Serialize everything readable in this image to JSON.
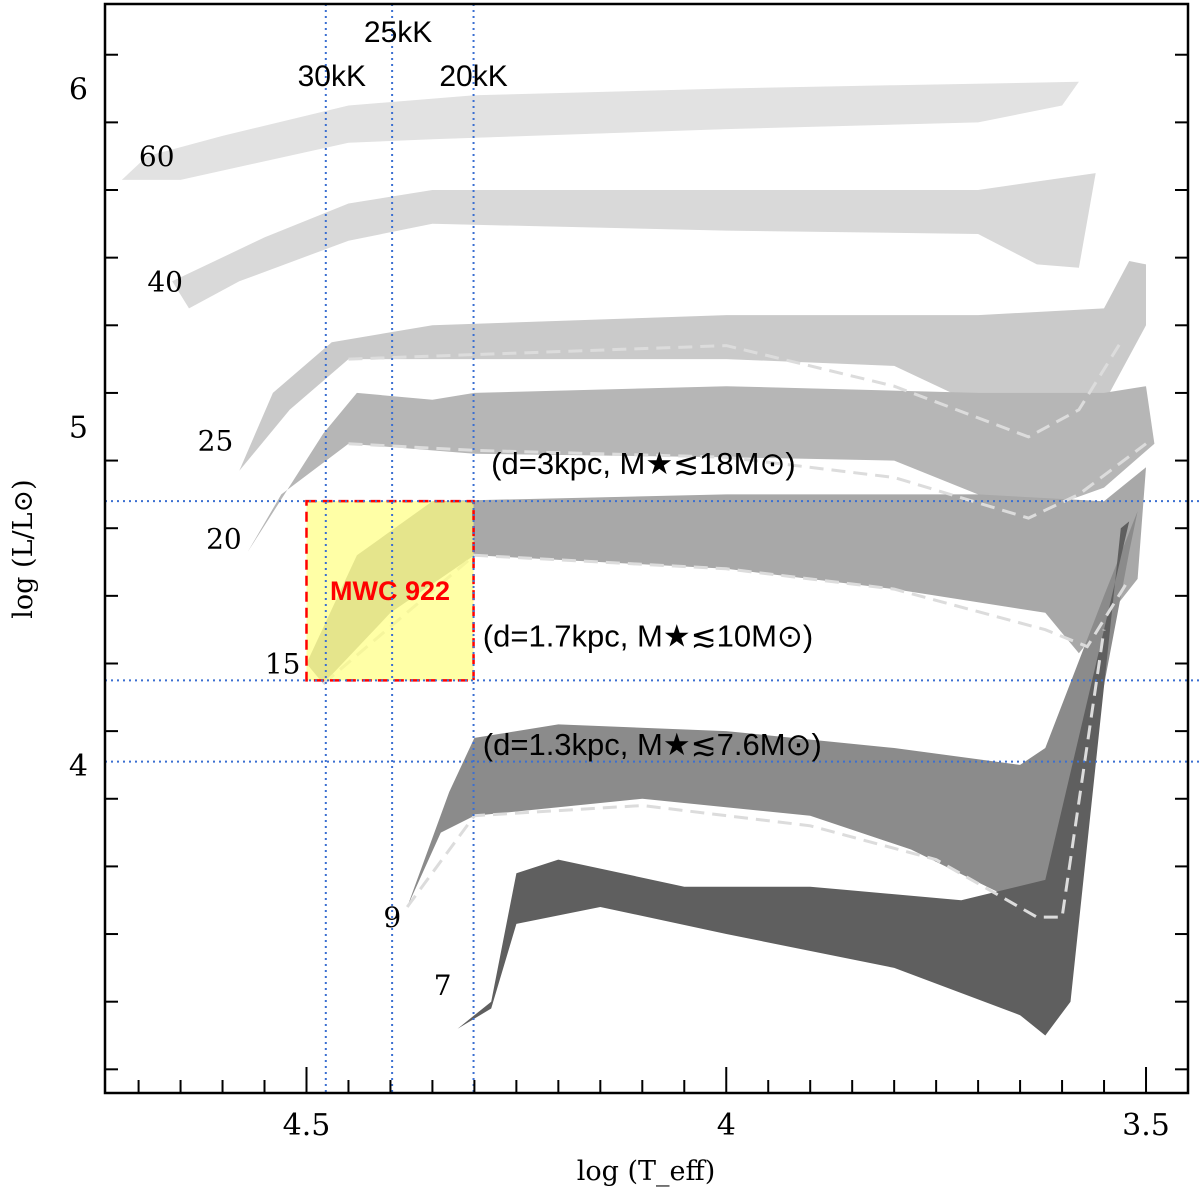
{
  "chart_data": {
    "type": "line",
    "title": "",
    "xlabel": "log (T_eff)",
    "ylabel": "log (L/L⊙)",
    "xlim": [
      4.74,
      3.45
    ],
    "ylim": [
      3.03,
      6.25
    ],
    "x_inverted": true,
    "x_ticks": [
      4.5,
      4.0,
      3.5
    ],
    "x_tick_labels": [
      "4.5",
      "4",
      "3.5"
    ],
    "y_ticks": [
      4,
      5,
      6
    ],
    "y_tick_labels": [
      "4",
      "5",
      "6"
    ],
    "grid": false,
    "legend": "none",
    "colors": {
      "track_60": "#e2e2e2",
      "track_40": "#d9d9d9",
      "track_25": "#cacaca",
      "track_20": "#b6b6b6",
      "track_15": "#a8a8a8",
      "track_9": "#8b8b8b",
      "track_7": "#5f5f5f",
      "guide_lines": "#3b6fd1",
      "box_fill": "#ffff80",
      "box_edge": "#ff0000",
      "dashed_tracks": "#dcdcdc"
    },
    "series": [
      {
        "name": "60",
        "upper": [
          [
            4.69,
            5.8
          ],
          [
            4.6,
            5.86
          ],
          [
            4.45,
            5.95
          ],
          [
            4.3,
            5.98
          ],
          [
            4.0,
            6.0
          ],
          [
            3.8,
            6.01
          ],
          [
            3.58,
            6.02
          ]
        ],
        "lower": [
          [
            4.72,
            5.73
          ],
          [
            4.65,
            5.73
          ],
          [
            4.45,
            5.84
          ],
          [
            4.35,
            5.85
          ],
          [
            4.0,
            5.88
          ],
          [
            3.7,
            5.9
          ],
          [
            3.6,
            5.95
          ]
        ]
      },
      {
        "name": "40",
        "upper": [
          [
            4.66,
            5.43
          ],
          [
            4.55,
            5.56
          ],
          [
            4.45,
            5.66
          ],
          [
            4.35,
            5.7
          ],
          [
            4.0,
            5.7
          ],
          [
            3.7,
            5.7
          ],
          [
            3.56,
            5.75
          ]
        ],
        "lower": [
          [
            4.64,
            5.35
          ],
          [
            4.58,
            5.43
          ],
          [
            4.45,
            5.55
          ],
          [
            4.35,
            5.6
          ],
          [
            4.0,
            5.58
          ],
          [
            3.7,
            5.57
          ],
          [
            3.63,
            5.48
          ],
          [
            3.58,
            5.47
          ]
        ]
      },
      {
        "name": "25",
        "upper": [
          [
            4.54,
            5.1
          ],
          [
            4.47,
            5.25
          ],
          [
            4.35,
            5.3
          ],
          [
            4.0,
            5.33
          ],
          [
            3.7,
            5.33
          ],
          [
            3.55,
            5.35
          ],
          [
            3.52,
            5.49
          ],
          [
            3.5,
            5.48
          ]
        ],
        "lower": [
          [
            4.58,
            4.87
          ],
          [
            4.52,
            5.05
          ],
          [
            4.45,
            5.2
          ],
          [
            4.3,
            5.2
          ],
          [
            4.0,
            5.2
          ],
          [
            3.8,
            5.18
          ],
          [
            3.62,
            4.97
          ],
          [
            3.55,
            5.07
          ],
          [
            3.5,
            5.3
          ]
        ],
        "dashed": [
          [
            4.45,
            5.2
          ],
          [
            4.0,
            5.24
          ],
          [
            3.8,
            5.12
          ],
          [
            3.64,
            4.97
          ],
          [
            3.58,
            5.05
          ],
          [
            3.53,
            5.25
          ]
        ]
      },
      {
        "name": "20",
        "upper": [
          [
            4.48,
            4.98
          ],
          [
            4.44,
            5.1
          ],
          [
            4.35,
            5.08
          ],
          [
            4.3,
            5.1
          ],
          [
            4.0,
            5.12
          ],
          [
            3.7,
            5.1
          ],
          [
            3.55,
            5.1
          ],
          [
            3.5,
            5.12
          ]
        ],
        "lower": [
          [
            4.57,
            4.63
          ],
          [
            4.53,
            4.8
          ],
          [
            4.45,
            4.95
          ],
          [
            4.3,
            4.92
          ],
          [
            4.0,
            4.91
          ],
          [
            3.8,
            4.9
          ],
          [
            3.64,
            4.74
          ],
          [
            3.55,
            4.82
          ],
          [
            3.49,
            4.95
          ]
        ],
        "dashed": [
          [
            4.45,
            4.95
          ],
          [
            4.3,
            4.93
          ],
          [
            4.0,
            4.91
          ],
          [
            3.8,
            4.85
          ],
          [
            3.64,
            4.73
          ],
          [
            3.58,
            4.8
          ],
          [
            3.5,
            4.95
          ]
        ]
      },
      {
        "name": "15",
        "upper": [
          [
            4.5,
            4.3
          ],
          [
            4.44,
            4.62
          ],
          [
            4.35,
            4.78
          ],
          [
            4.0,
            4.8
          ],
          [
            3.7,
            4.8
          ],
          [
            3.55,
            4.78
          ],
          [
            3.5,
            4.88
          ]
        ],
        "lower": [
          [
            4.48,
            4.24
          ],
          [
            4.4,
            4.45
          ],
          [
            4.3,
            4.62
          ],
          [
            4.0,
            4.58
          ],
          [
            3.8,
            4.52
          ],
          [
            3.62,
            4.45
          ],
          [
            3.58,
            4.33
          ],
          [
            3.51,
            4.55
          ]
        ],
        "dashed": [
          [
            4.48,
            4.24
          ],
          [
            4.3,
            4.62
          ],
          [
            4.0,
            4.58
          ],
          [
            3.8,
            4.52
          ],
          [
            3.62,
            4.4
          ],
          [
            3.57,
            4.35
          ],
          [
            3.52,
            4.55
          ]
        ]
      },
      {
        "name": "9",
        "upper": [
          [
            4.33,
            3.92
          ],
          [
            4.3,
            4.08
          ],
          [
            4.2,
            4.12
          ],
          [
            4.0,
            4.1
          ],
          [
            3.8,
            4.05
          ],
          [
            3.65,
            4.0
          ],
          [
            3.62,
            4.05
          ],
          [
            3.55,
            4.5
          ],
          [
            3.51,
            4.75
          ]
        ],
        "lower": [
          [
            4.38,
            3.58
          ],
          [
            4.34,
            3.8
          ],
          [
            4.3,
            3.85
          ],
          [
            4.1,
            3.9
          ],
          [
            3.9,
            3.85
          ],
          [
            3.78,
            3.75
          ],
          [
            3.64,
            3.58
          ],
          [
            3.6,
            3.58
          ],
          [
            3.52,
            4.63
          ]
        ],
        "dashed": [
          [
            4.38,
            3.58
          ],
          [
            4.3,
            3.85
          ],
          [
            4.1,
            3.88
          ],
          [
            3.9,
            3.82
          ],
          [
            3.75,
            3.72
          ],
          [
            3.63,
            3.55
          ],
          [
            3.6,
            3.55
          ],
          [
            3.55,
            4.4
          ]
        ]
      },
      {
        "name": "7",
        "upper": [
          [
            4.28,
            3.3
          ],
          [
            4.25,
            3.68
          ],
          [
            4.2,
            3.72
          ],
          [
            4.05,
            3.64
          ],
          [
            3.9,
            3.64
          ],
          [
            3.72,
            3.6
          ],
          [
            3.62,
            3.66
          ],
          [
            3.55,
            4.4
          ],
          [
            3.52,
            4.72
          ]
        ],
        "lower": [
          [
            4.32,
            3.22
          ],
          [
            4.28,
            3.28
          ],
          [
            4.25,
            3.53
          ],
          [
            4.15,
            3.58
          ],
          [
            4.0,
            3.5
          ],
          [
            3.8,
            3.4
          ],
          [
            3.65,
            3.26
          ],
          [
            3.62,
            3.2
          ],
          [
            3.59,
            3.3
          ],
          [
            3.53,
            4.7
          ]
        ]
      }
    ],
    "guide_lines": {
      "vertical_temperatures": [
        {
          "log_teff": 4.477,
          "label": "30kK"
        },
        {
          "log_teff": 4.398,
          "label": "25kK"
        },
        {
          "log_teff": 4.301,
          "label": "20kK"
        }
      ],
      "horizontal_luminosities": [
        {
          "log_l": 4.78,
          "label": "(d=3kpc, M★≲18M⊙)"
        },
        {
          "log_l": 4.25,
          "label": "(d=1.7kpc, M★≲10M⊙)"
        },
        {
          "log_l": 4.01,
          "label": "(d=1.3kpc, M★≲7.6M⊙)"
        }
      ]
    },
    "region": {
      "label": "MWC 922",
      "log_teff": [
        4.301,
        4.5
      ],
      "log_l": [
        4.25,
        4.78
      ]
    },
    "mass_labels": [
      "60",
      "40",
      "25",
      "20",
      "15",
      "9",
      "7"
    ]
  }
}
